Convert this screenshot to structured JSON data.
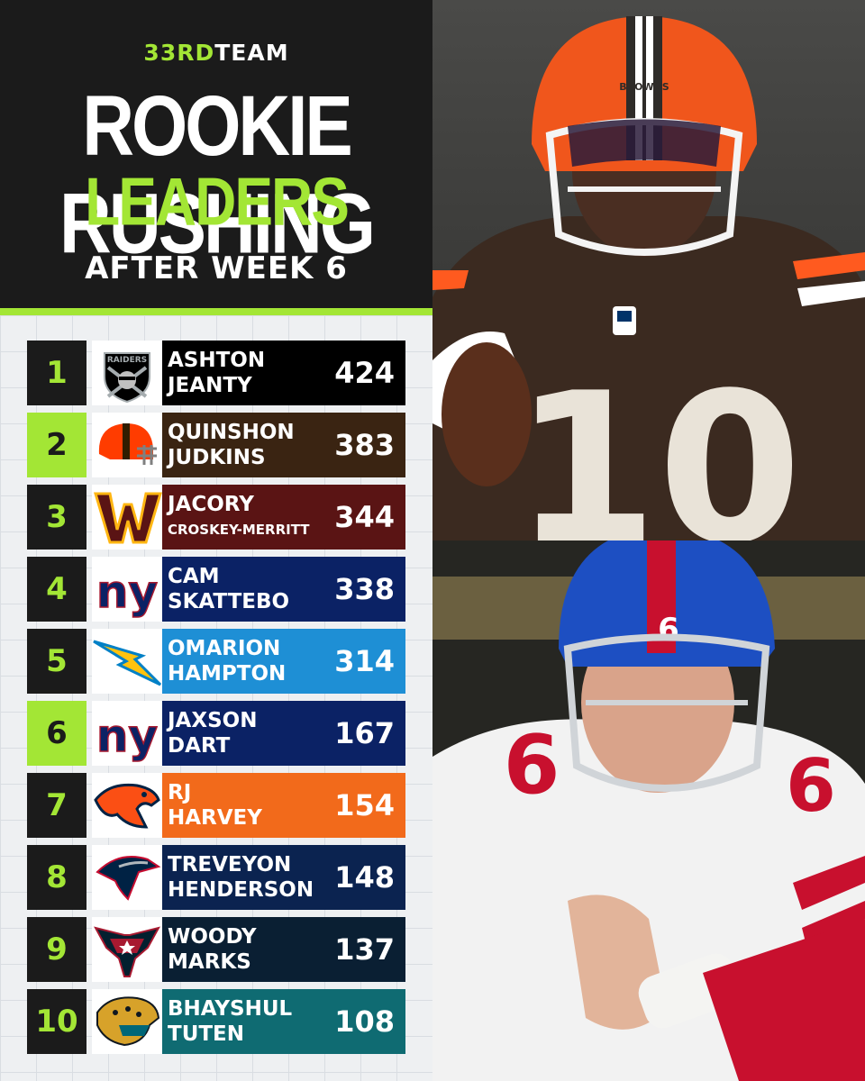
{
  "header": {
    "brand_green": "33RD",
    "brand_white": "TEAM",
    "title_line1": "ROOKIE RUSHING",
    "title_line2": "LEADERS",
    "subtitle": "AFTER WEEK 6"
  },
  "colors": {
    "accent": "#a3e635",
    "background_dark": "#1b1b1b"
  },
  "leaders": [
    {
      "rank": "1",
      "first": "ASHTON",
      "last": "JEANTY",
      "yards": "424",
      "team_logo": "raiders-logo",
      "bar_color": "#000000"
    },
    {
      "rank": "2",
      "first": "QUINSHON",
      "last": "JUDKINS",
      "yards": "383",
      "team_logo": "browns-helmet-logo",
      "bar_color": "#3a2412"
    },
    {
      "rank": "3",
      "first": "JACORY",
      "last": "CROSKEY-MERRITT",
      "yards": "344",
      "team_logo": "commanders-logo",
      "bar_color": "#5a1414"
    },
    {
      "rank": "4",
      "first": "CAM",
      "last": "SKATTEBO",
      "yards": "338",
      "team_logo": "giants-logo",
      "bar_color": "#0b2265"
    },
    {
      "rank": "5",
      "first": "OMARION",
      "last": "HAMPTON",
      "yards": "314",
      "team_logo": "chargers-bolt-logo",
      "bar_color": "#1e8fd5"
    },
    {
      "rank": "6",
      "first": "JAXSON",
      "last": "DART",
      "yards": "167",
      "team_logo": "giants-logo",
      "bar_color": "#0b2265"
    },
    {
      "rank": "7",
      "first": "RJ",
      "last": "HARVEY",
      "yards": "154",
      "team_logo": "broncos-horse-logo",
      "bar_color": "#f26a1b"
    },
    {
      "rank": "8",
      "first": "TREVEYON",
      "last": "HENDERSON",
      "yards": "148",
      "team_logo": "patriots-logo",
      "bar_color": "#0b2350"
    },
    {
      "rank": "9",
      "first": "WOODY",
      "last": "MARKS",
      "yards": "137",
      "team_logo": "texans-bull-logo",
      "bar_color": "#0a1f33"
    },
    {
      "rank": "10",
      "first": "BHAYSHUL",
      "last": "TUTEN",
      "yards": "108",
      "team_logo": "jaguars-logo",
      "bar_color": "#0f6b72"
    }
  ],
  "photos": {
    "top_jersey_number": "10",
    "top_helmet_text": "BROWNS",
    "bottom_jersey_number": "6"
  }
}
